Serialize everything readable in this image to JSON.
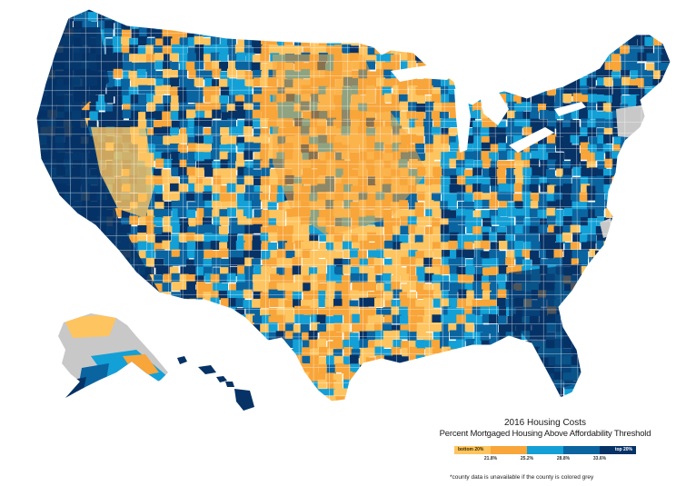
{
  "legend": {
    "title": "2016 Housing Costs",
    "subtitle": "Percent Mortgaged Housing Above Affordability Threshold",
    "bottom_label": "bottom 20%",
    "top_label": "top 20%",
    "breaks": [
      "21.8%",
      "25.2%",
      "28.8%",
      "33.6%"
    ],
    "colors": [
      "#fec460",
      "#f8a53a",
      "#13a0d6",
      "#0a64a0",
      "#063266"
    ],
    "missing_color": "#c8c8c8"
  },
  "note": "*county data is unavailable if the county is colored grey"
}
